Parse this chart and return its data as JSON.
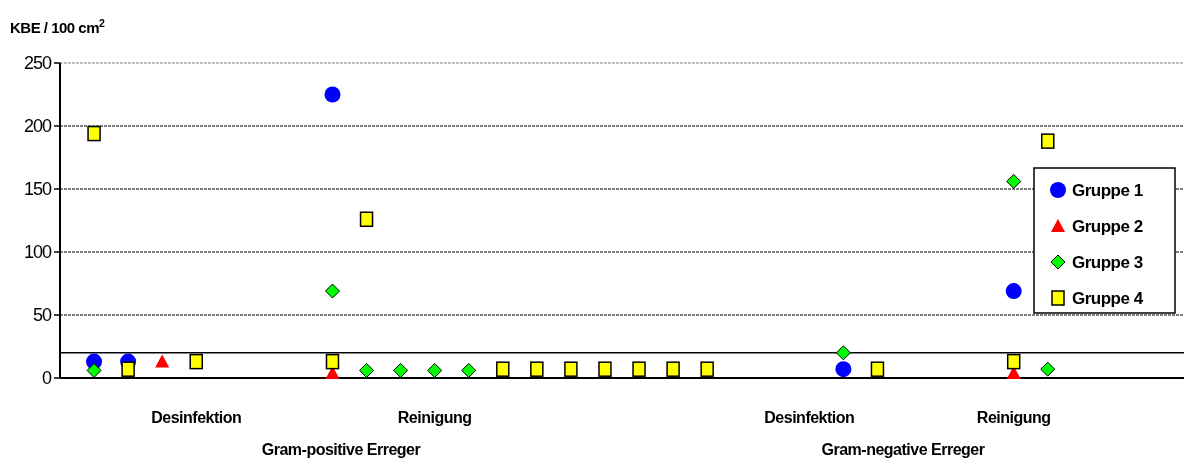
{
  "chart_data": {
    "type": "scatter",
    "ylabel": "KBE / 100 cm$^{2}$",
    "categories": [
      null,
      null,
      null,
      "Desinfektion",
      null,
      null,
      null,
      null,
      null,
      null,
      "Reinigung",
      null,
      null,
      null,
      null,
      null,
      null,
      null,
      null,
      null,
      null,
      "Desinfektion",
      null,
      null,
      null,
      null,
      null,
      "Reinigung",
      null,
      null,
      null,
      null
    ],
    "ylim": [
      0,
      250
    ],
    "yticks": [
      0,
      50,
      100,
      150,
      200,
      250
    ],
    "grid": "y",
    "legend": "right",
    "ref_lines": [
      {
        "axis": "y",
        "value": 20,
        "color": "#000000",
        "line_style": "solid"
      }
    ],
    "annotations": [
      "Gram-positive Erreger",
      "Gram-negative Erreger"
    ],
    "series": [
      {
        "name": "Gruppe 1",
        "color": "#0000ff",
        "marker": "circle",
        "values": [
          13,
          13,
          null,
          null,
          null,
          null,
          null,
          225,
          null,
          null,
          null,
          null,
          null,
          null,
          null,
          null,
          null,
          null,
          null,
          null,
          null,
          null,
          7,
          null,
          null,
          null,
          null,
          69,
          null,
          null,
          null,
          null
        ]
      },
      {
        "name": "Gruppe 2",
        "color": "#ff0000",
        "marker": "triangle",
        "values": [
          null,
          null,
          13,
          null,
          null,
          null,
          null,
          4,
          null,
          null,
          null,
          null,
          null,
          null,
          null,
          null,
          null,
          null,
          null,
          null,
          null,
          null,
          null,
          null,
          null,
          null,
          null,
          4,
          null,
          null,
          null,
          null
        ]
      },
      {
        "name": "Gruppe 3",
        "color": "#00ff00",
        "marker": "diamond",
        "values": [
          6,
          null,
          null,
          null,
          null,
          null,
          null,
          69,
          6,
          6,
          6,
          6,
          null,
          null,
          null,
          null,
          null,
          null,
          null,
          null,
          null,
          null,
          20,
          null,
          null,
          null,
          null,
          156,
          7,
          null,
          null,
          null
        ]
      },
      {
        "name": "Gruppe 4",
        "color": "#ffff00",
        "marker": "square",
        "values": [
          194,
          7,
          null,
          13,
          null,
          null,
          null,
          13,
          126,
          null,
          null,
          null,
          7,
          7,
          7,
          7,
          7,
          7,
          7,
          null,
          null,
          null,
          null,
          7,
          null,
          null,
          null,
          13,
          188,
          null,
          null,
          null
        ]
      }
    ]
  }
}
